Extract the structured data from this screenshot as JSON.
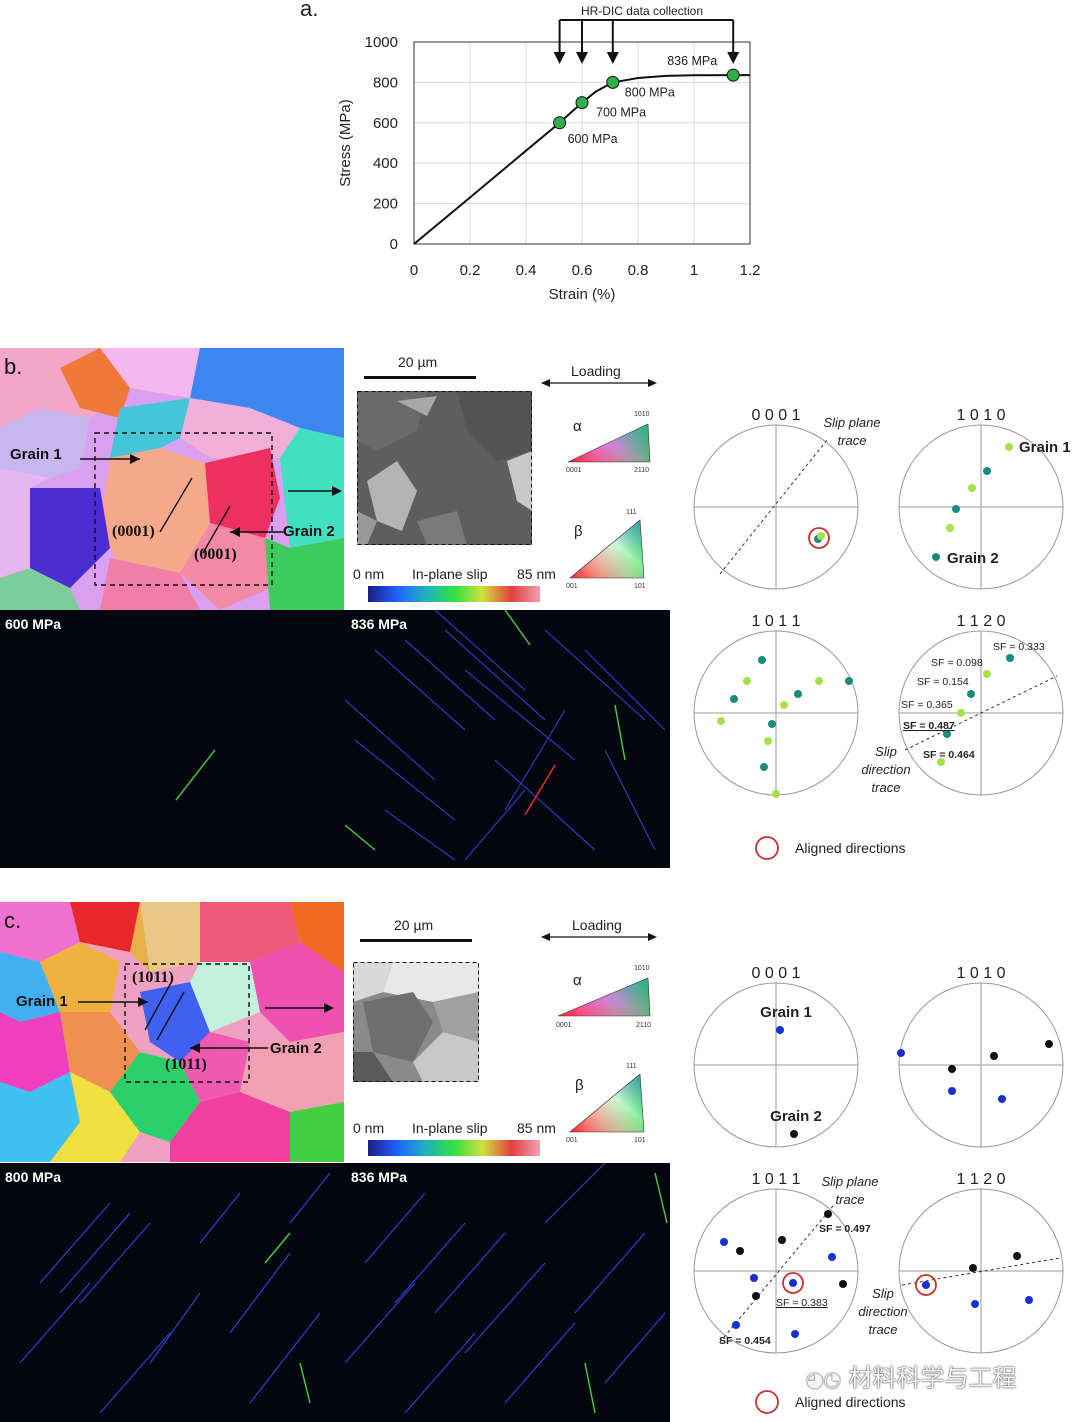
{
  "panel_a": {
    "label": "a.",
    "banner": "HR-DIC data collection",
    "chart_data": {
      "type": "line",
      "xlabel": "Strain (%)",
      "ylabel": "Stress (MPa)",
      "xlim": [
        0,
        1.2
      ],
      "ylim": [
        0,
        1000
      ],
      "xticks": [
        "0",
        "0.2",
        "0.4",
        "0.6",
        "0.8",
        "1",
        "1.2"
      ],
      "yticks": [
        "0",
        "200",
        "400",
        "600",
        "800",
        "1000"
      ],
      "grid": true,
      "curve": [
        [
          0,
          0
        ],
        [
          0.2,
          230
        ],
        [
          0.4,
          462
        ],
        [
          0.52,
          600
        ],
        [
          0.6,
          700
        ],
        [
          0.65,
          755
        ],
        [
          0.71,
          800
        ],
        [
          0.8,
          822
        ],
        [
          0.9,
          832
        ],
        [
          1.0,
          835
        ],
        [
          1.14,
          836
        ],
        [
          1.2,
          836
        ]
      ],
      "markers": [
        {
          "x": 0.52,
          "y": 600,
          "label": "600 MPa"
        },
        {
          "x": 0.6,
          "y": 700,
          "label": "700 MPa"
        },
        {
          "x": 0.71,
          "y": 800,
          "label": "800 MPa"
        },
        {
          "x": 1.14,
          "y": 836,
          "label": "836 MPa"
        }
      ],
      "marker_color": "#2bb34a"
    }
  },
  "panel_b": {
    "label": "b.",
    "grain1": "Grain 1",
    "grain2": "Grain 2",
    "plane1": "(0001)",
    "plane2": "(0001)",
    "scale": "20 µm",
    "loading": "Loading",
    "alpha": "α",
    "beta": "β",
    "slip_min": "0 nm",
    "slip_title": "In-plane slip",
    "slip_max": "85 nm",
    "map_left_label": "600 MPa",
    "map_right_label": "836 MPa",
    "pf_titles": [
      "0 0 0 1",
      "1 0 1 0",
      "1 0 1 1",
      "1 1 2 0"
    ],
    "slip_plane_trace": [
      "Slip plane",
      "trace"
    ],
    "slip_direction_trace": [
      "Slip",
      "direction",
      "trace"
    ],
    "pf_grain1": "Grain 1",
    "pf_grain2": "Grain 2",
    "sf": [
      "SF = 0.333",
      "SF = 0.098",
      "SF = 0.154",
      "SF = 0.365",
      "SF = 0.487",
      "SF = 0.464"
    ],
    "aligned": "Aligned directions"
  },
  "panel_c": {
    "label": "c.",
    "grain1": "Grain 1",
    "grain2": "Grain 2",
    "plane1": "(1011)",
    "plane2": "(1011)",
    "scale": "20 µm",
    "loading": "Loading",
    "alpha": "α",
    "beta": "β",
    "slip_min": "0 nm",
    "slip_title": "In-plane slip",
    "slip_max": "85 nm",
    "map_left_label": "800 MPa",
    "map_right_label": "836 MPa",
    "pf_titles": [
      "0 0 0 1",
      "1 0 1 0",
      "1 0 1 1",
      "1 1 2 0"
    ],
    "slip_plane_trace": [
      "Slip plane",
      "trace"
    ],
    "slip_direction_trace": [
      "Slip",
      "direction",
      "trace"
    ],
    "pf_grain1": "Grain 1",
    "pf_grain2": "Grain 2",
    "sf": [
      "SF = 0.497",
      "SF = 0.383",
      "SF = 0.454"
    ],
    "aligned": "Aligned directions"
  },
  "ipf_ticks": {
    "a1": "0001",
    "a2": "2110",
    "a3": "1010",
    "b1": "001",
    "b2": "101",
    "b3": "111"
  },
  "watermark": "材料科学与工程",
  "colors": {
    "teal": "#1a8c7c",
    "lime": "#a6e04a",
    "blue": "#1a2fd0",
    "black": "#111111",
    "aligned_ring": "#c8322b"
  }
}
